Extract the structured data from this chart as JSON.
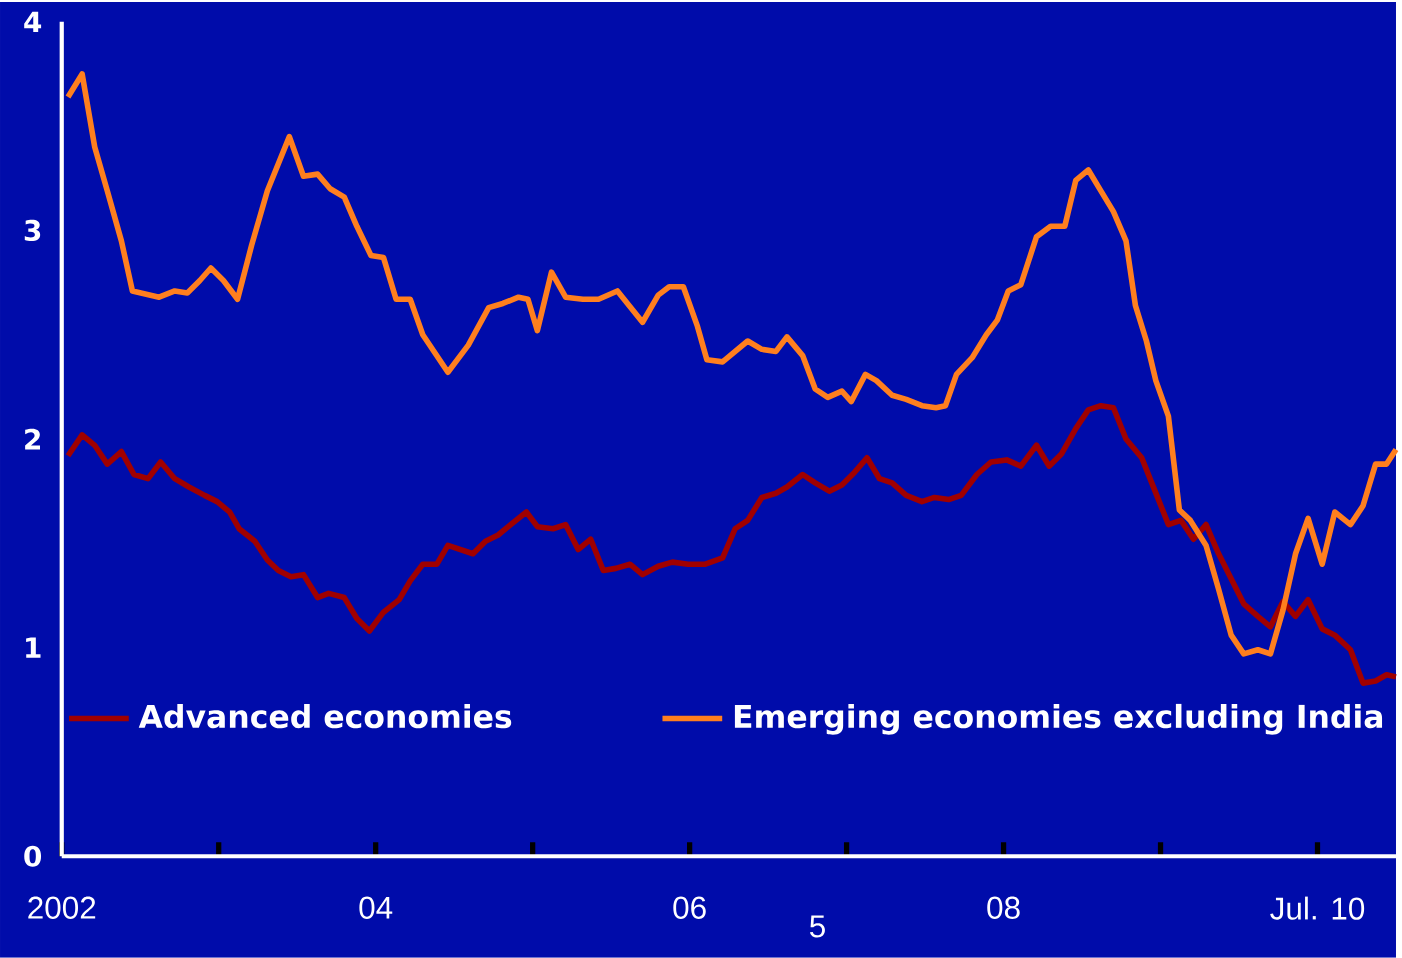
{
  "chart_data": {
    "type": "line",
    "xlim": [
      2002,
      2010.5
    ],
    "ylim": [
      0,
      4
    ],
    "yticks": [
      0,
      1,
      2,
      3,
      4
    ],
    "xticks": [
      {
        "value": 2002,
        "label": "2002"
      },
      {
        "value": 2003,
        "label": null
      },
      {
        "value": 2004,
        "label": "04"
      },
      {
        "value": 2005,
        "label": null
      },
      {
        "value": 2006,
        "label": "06"
      },
      {
        "value": 2007,
        "label": null
      },
      {
        "value": 2008,
        "label": "08"
      },
      {
        "value": 2009,
        "label": null
      },
      {
        "value": 2010,
        "label": "Jul. 10"
      }
    ],
    "legend": "bottom",
    "grid": false,
    "marker": "none",
    "line_style": "solid",
    "annotations": [
      "5"
    ],
    "series": [
      {
        "name": "Advanced economies",
        "color": "#a00000",
        "x": [
          2002.04,
          2002.13,
          2002.21,
          2002.29,
          2002.38,
          2002.46,
          2002.55,
          2002.63,
          2002.72,
          2002.81,
          2002.91,
          2002.99,
          2003.07,
          2003.13,
          2003.23,
          2003.31,
          2003.38,
          2003.46,
          2003.54,
          2003.63,
          2003.7,
          2003.8,
          2003.88,
          2003.96,
          2004.05,
          2004.15,
          2004.22,
          2004.3,
          2004.39,
          2004.46,
          2004.54,
          2004.62,
          2004.7,
          2004.78,
          2004.86,
          2004.96,
          2005.03,
          2005.13,
          2005.21,
          2005.29,
          2005.37,
          2005.45,
          2005.53,
          2005.62,
          2005.7,
          2005.8,
          2005.89,
          2005.99,
          2006.1,
          2006.21,
          2006.29,
          2006.37,
          2006.46,
          2006.55,
          2006.62,
          2006.72,
          2006.8,
          2006.89,
          2006.97,
          2007.05,
          2007.13,
          2007.21,
          2007.29,
          2007.38,
          2007.48,
          2007.56,
          2007.65,
          2007.73,
          2007.83,
          2007.92,
          2008.02,
          2008.11,
          2008.21,
          2008.29,
          2008.37,
          2008.46,
          2008.54,
          2008.62,
          2008.7,
          2008.78,
          2008.88,
          2008.96,
          2009.05,
          2009.13,
          2009.21,
          2009.29,
          2009.37,
          2009.45,
          2009.53,
          2009.62,
          2009.7,
          2009.78,
          2009.86,
          2009.94,
          2010.03,
          2010.11,
          2010.21,
          2010.29,
          2010.37,
          2010.44,
          2010.5
        ],
        "values": [
          1.92,
          2.02,
          1.97,
          1.88,
          1.94,
          1.83,
          1.81,
          1.89,
          1.81,
          1.77,
          1.73,
          1.7,
          1.65,
          1.57,
          1.51,
          1.42,
          1.37,
          1.34,
          1.35,
          1.24,
          1.26,
          1.24,
          1.14,
          1.08,
          1.17,
          1.23,
          1.32,
          1.4,
          1.4,
          1.49,
          1.47,
          1.45,
          1.51,
          1.54,
          1.59,
          1.65,
          1.58,
          1.57,
          1.59,
          1.47,
          1.52,
          1.37,
          1.38,
          1.4,
          1.35,
          1.39,
          1.41,
          1.4,
          1.4,
          1.43,
          1.57,
          1.61,
          1.72,
          1.74,
          1.77,
          1.83,
          1.79,
          1.75,
          1.78,
          1.84,
          1.91,
          1.81,
          1.79,
          1.73,
          1.7,
          1.72,
          1.71,
          1.73,
          1.83,
          1.89,
          1.9,
          1.87,
          1.97,
          1.87,
          1.93,
          2.05,
          2.14,
          2.16,
          2.15,
          2.0,
          1.91,
          1.76,
          1.59,
          1.61,
          1.52,
          1.59,
          1.45,
          1.33,
          1.21,
          1.15,
          1.1,
          1.22,
          1.15,
          1.23,
          1.09,
          1.06,
          0.99,
          0.83,
          0.84,
          0.87,
          0.86
        ]
      },
      {
        "name": "Emerging economies excluding India",
        "color": "#ff7f1e",
        "x": [
          2002.04,
          2002.13,
          2002.21,
          2002.29,
          2002.38,
          2002.45,
          2002.62,
          2002.72,
          2002.8,
          2002.88,
          2002.95,
          2003.03,
          2003.12,
          2003.21,
          2003.31,
          2003.45,
          2003.54,
          2003.63,
          2003.71,
          2003.8,
          2003.88,
          2003.97,
          2004.05,
          2004.13,
          2004.22,
          2004.3,
          2004.46,
          2004.59,
          2004.72,
          2004.81,
          2004.91,
          2004.97,
          2005.03,
          2005.12,
          2005.21,
          2005.32,
          2005.42,
          2005.54,
          2005.7,
          2005.8,
          2005.87,
          2005.96,
          2006.05,
          2006.11,
          2006.21,
          2006.37,
          2006.46,
          2006.55,
          2006.62,
          2006.72,
          2006.8,
          2006.88,
          2006.97,
          2007.03,
          2007.12,
          2007.19,
          2007.29,
          2007.38,
          2007.48,
          2007.57,
          2007.63,
          2007.7,
          2007.8,
          2007.89,
          2007.96,
          2008.03,
          2008.11,
          2008.21,
          2008.3,
          2008.39,
          2008.46,
          2008.54,
          2008.62,
          2008.7,
          2008.78,
          2008.84,
          2008.91,
          2008.97,
          2009.05,
          2009.12,
          2009.19,
          2009.29,
          2009.37,
          2009.45,
          2009.53,
          2009.62,
          2009.7,
          2009.78,
          2009.86,
          2009.94,
          2010.03,
          2010.11,
          2010.21,
          2010.29,
          2010.37,
          2010.44,
          2010.5
        ],
        "values": [
          3.64,
          3.75,
          3.4,
          3.19,
          2.95,
          2.71,
          2.68,
          2.71,
          2.7,
          2.76,
          2.82,
          2.76,
          2.67,
          2.93,
          3.19,
          3.45,
          3.26,
          3.27,
          3.2,
          3.16,
          3.02,
          2.88,
          2.87,
          2.67,
          2.67,
          2.5,
          2.32,
          2.45,
          2.63,
          2.65,
          2.68,
          2.67,
          2.52,
          2.8,
          2.68,
          2.67,
          2.67,
          2.71,
          2.56,
          2.69,
          2.73,
          2.73,
          2.54,
          2.38,
          2.37,
          2.47,
          2.43,
          2.42,
          2.49,
          2.4,
          2.24,
          2.2,
          2.23,
          2.18,
          2.31,
          2.28,
          2.21,
          2.19,
          2.16,
          2.15,
          2.16,
          2.31,
          2.39,
          2.5,
          2.57,
          2.71,
          2.74,
          2.97,
          3.02,
          3.02,
          3.24,
          3.29,
          3.19,
          3.09,
          2.95,
          2.64,
          2.47,
          2.28,
          2.11,
          1.66,
          1.61,
          1.49,
          1.28,
          1.06,
          0.97,
          0.99,
          0.97,
          1.18,
          1.45,
          1.62,
          1.4,
          1.65,
          1.59,
          1.68,
          1.88,
          1.88,
          1.95
        ]
      }
    ]
  }
}
